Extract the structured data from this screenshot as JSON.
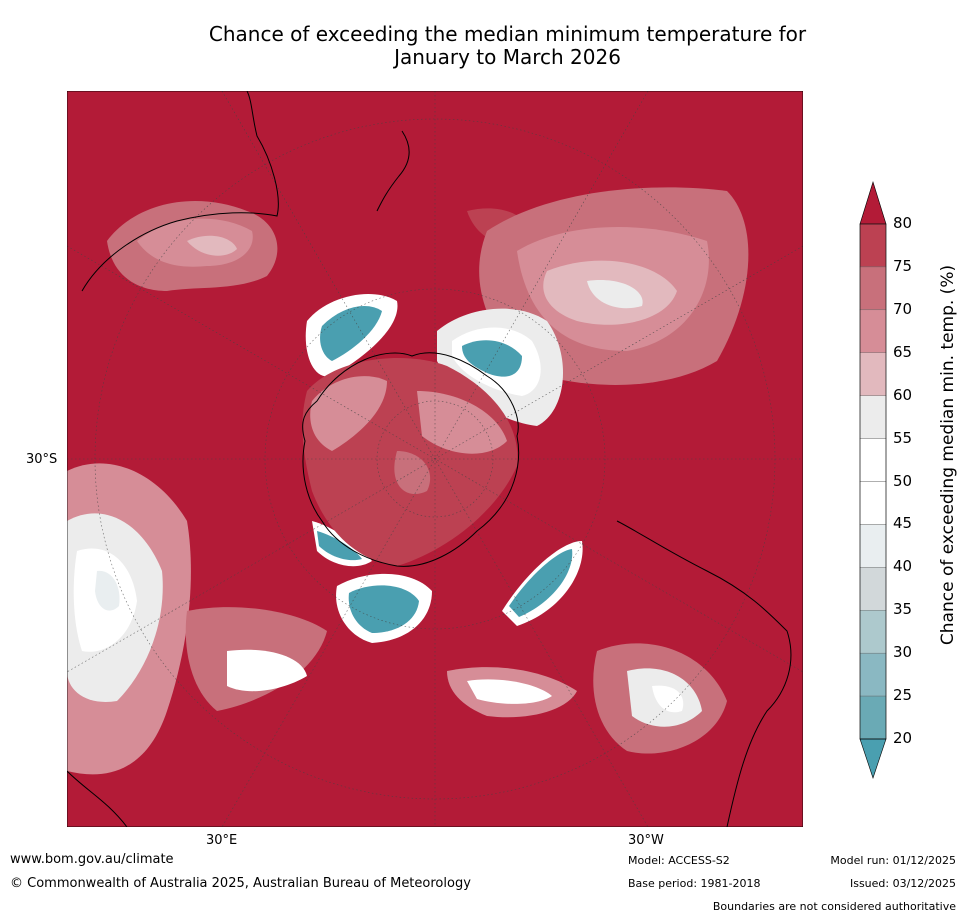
{
  "title": {
    "line1": "Chance of exceeding the median minimum temperature for",
    "line2": "January to March 2026"
  },
  "map": {
    "latitude_label": "30°S",
    "longitude_labels": [
      "30°E",
      "30°W"
    ],
    "projection": "south-polar-stereographic",
    "background_color": "#b31b37"
  },
  "colorbar": {
    "label": "Chance of exceeding median min. temp. (%)",
    "ticks": [
      "20",
      "25",
      "30",
      "35",
      "40",
      "45",
      "50",
      "55",
      "60",
      "65",
      "70",
      "75",
      "80"
    ],
    "bins": [
      {
        "range": "<20",
        "color": "#4a9fb0"
      },
      {
        "range": "20-25",
        "color": "#6aaab5"
      },
      {
        "range": "25-30",
        "color": "#8ab8c2"
      },
      {
        "range": "30-35",
        "color": "#adc9cd"
      },
      {
        "range": "35-40",
        "color": "#d2d8da"
      },
      {
        "range": "40-45",
        "color": "#e9eef0"
      },
      {
        "range": "45-50",
        "color": "#ffffff"
      },
      {
        "range": "50-55",
        "color": "#ffffff"
      },
      {
        "range": "55-60",
        "color": "#ececec"
      },
      {
        "range": "60-65",
        "color": "#e2b9be"
      },
      {
        "range": "65-70",
        "color": "#d68d97"
      },
      {
        "range": "70-75",
        "color": "#c8707b"
      },
      {
        "range": "75-80",
        "color": "#bc4152"
      },
      {
        "range": ">80",
        "color": "#b31b37"
      }
    ]
  },
  "footer": {
    "website": "www.bom.gov.au/climate",
    "copyright": "© Commonwealth of Australia 2025, Australian Bureau of Meteorology",
    "model": "Model: ACCESS-S2",
    "base_period": "Base period: 1981-2018",
    "model_run": "Model run: 01/12/2025",
    "issued": "Issued: 03/12/2025",
    "disclaimer": "Boundaries are not considered authoritative"
  }
}
